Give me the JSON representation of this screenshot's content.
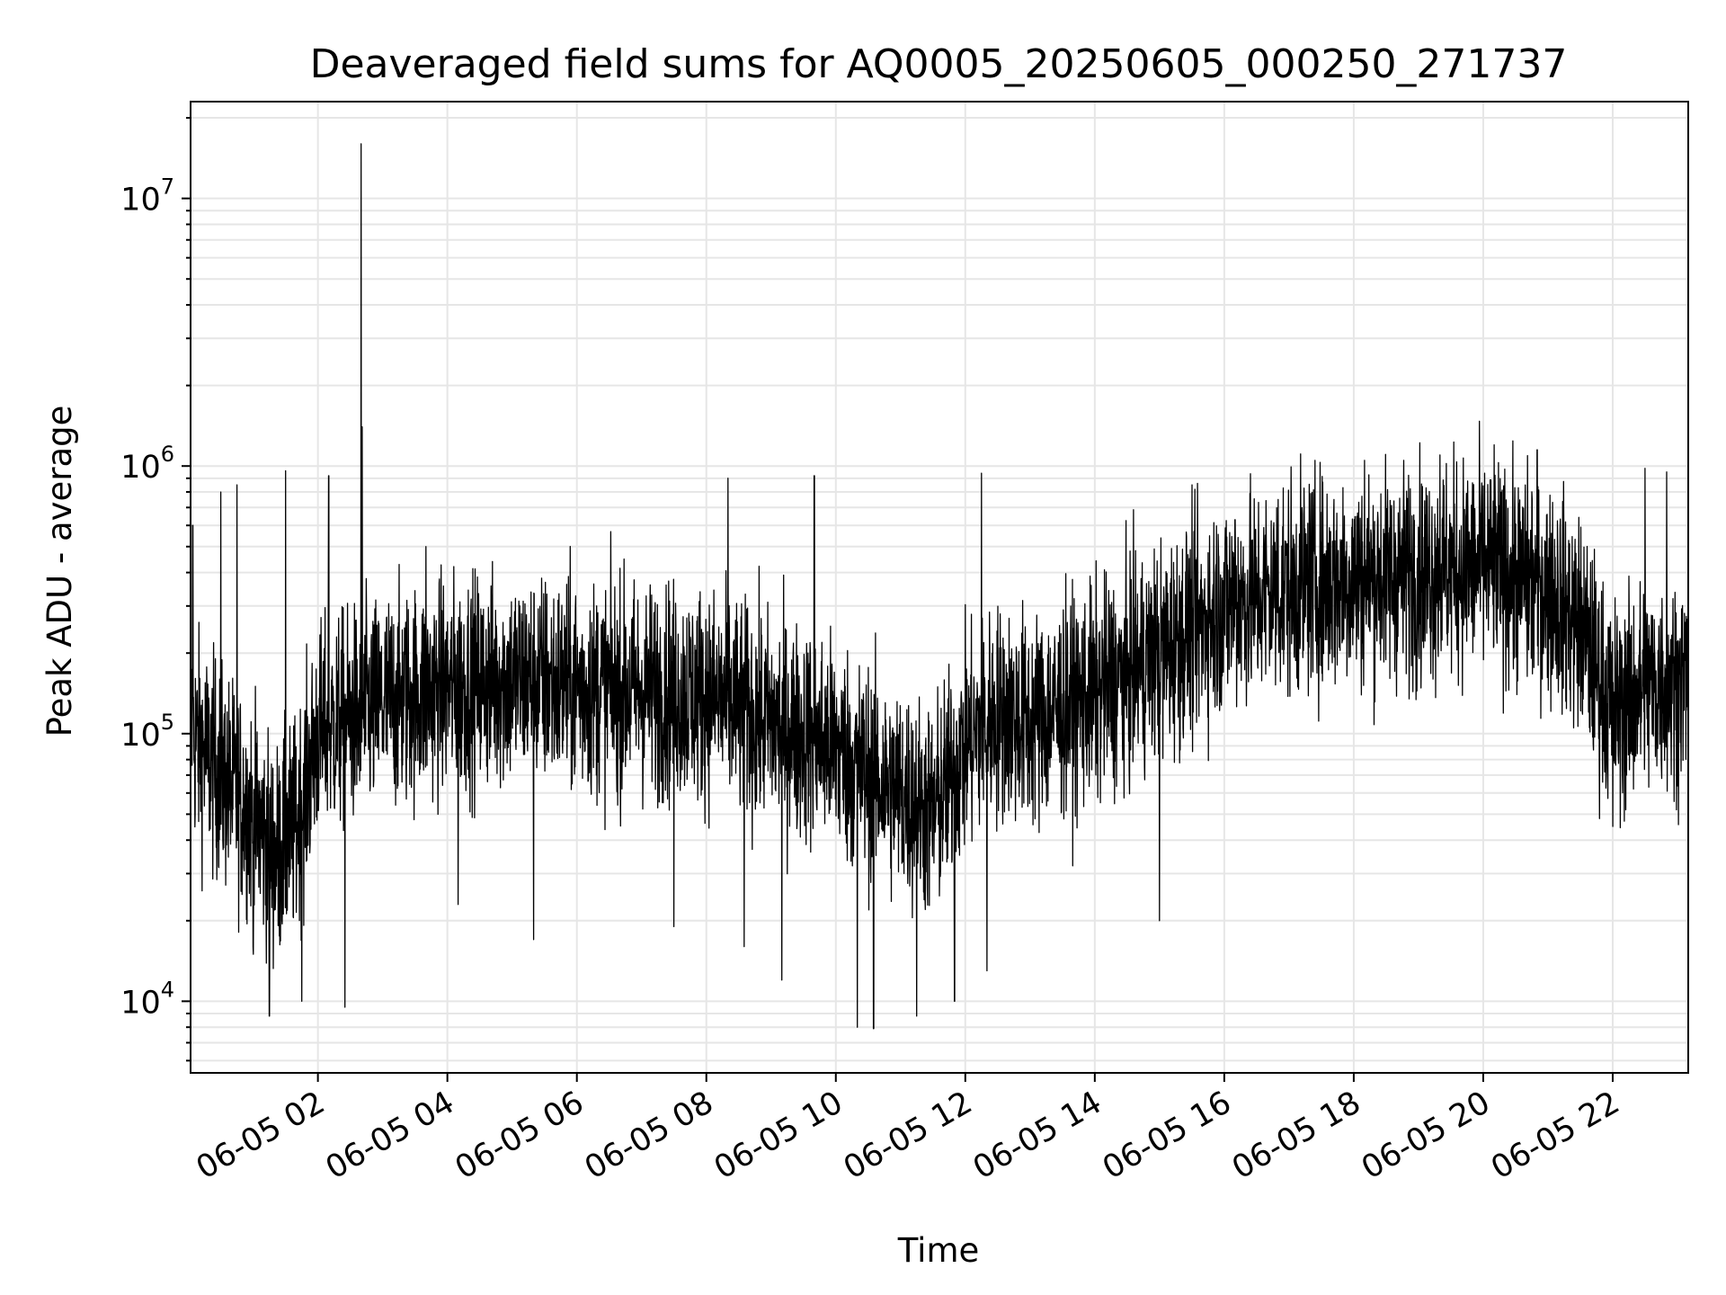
{
  "chart_data": {
    "type": "line",
    "title": "Deaveraged field sums for AQ0005_20250605_000250_271737",
    "xlabel": "Time",
    "ylabel": "Peak ADU - average",
    "y_scale": "log",
    "ylim": [
      5400,
      23000000
    ],
    "xlim": [
      "06-05 00:02",
      "06-05 23:10"
    ],
    "grid": true,
    "line_color": "#000000",
    "grid_color": "#e6e6e6",
    "x_ticks": [
      "06-05 02",
      "06-05 04",
      "06-05 06",
      "06-05 08",
      "06-05 10",
      "06-05 12",
      "06-05 14",
      "06-05 16",
      "06-05 18",
      "06-05 20",
      "06-05 22"
    ],
    "y_ticks": [
      {
        "base": "10",
        "exp": "4",
        "value": 10000
      },
      {
        "base": "10",
        "exp": "5",
        "value": 100000
      },
      {
        "base": "10",
        "exp": "6",
        "value": 1000000
      },
      {
        "base": "10",
        "exp": "7",
        "value": 10000000
      }
    ],
    "series": [
      {
        "baseline": [
          [
            "06-05 00:02",
            100000
          ],
          [
            "06-05 00:30",
            70000
          ],
          [
            "06-05 01:00",
            50000
          ],
          [
            "06-05 01:20",
            35000
          ],
          [
            "06-05 01:40",
            45000
          ],
          [
            "06-05 02:00",
            100000
          ],
          [
            "06-05 03:00",
            130000
          ],
          [
            "06-05 04:00",
            150000
          ],
          [
            "06-05 05:00",
            160000
          ],
          [
            "06-05 06:00",
            150000
          ],
          [
            "06-05 07:00",
            145000
          ],
          [
            "06-05 08:00",
            140000
          ],
          [
            "06-05 09:00",
            110000
          ],
          [
            "06-05 10:00",
            90000
          ],
          [
            "06-05 10:30",
            70000
          ],
          [
            "06-05 11:00",
            60000
          ],
          [
            "06-05 11:30",
            50000
          ],
          [
            "06-05 12:00",
            90000
          ],
          [
            "06-05 12:30",
            120000
          ],
          [
            "06-05 13:00",
            110000
          ],
          [
            "06-05 14:00",
            140000
          ],
          [
            "06-05 15:00",
            200000
          ],
          [
            "06-05 16:00",
            300000
          ],
          [
            "06-05 17:00",
            350000
          ],
          [
            "06-05 18:00",
            380000
          ],
          [
            "06-05 19:00",
            400000
          ],
          [
            "06-05 20:00",
            420000
          ],
          [
            "06-05 21:00",
            350000
          ],
          [
            "06-05 21:30",
            250000
          ],
          [
            "06-05 22:00",
            120000
          ],
          [
            "06-05 22:30",
            150000
          ],
          [
            "06-05 23:10",
            160000
          ]
        ],
        "spikes": [
          [
            "06-05 00:04",
            600000
          ],
          [
            "06-05 00:30",
            800000
          ],
          [
            "06-05 00:45",
            850000
          ],
          [
            "06-05 01:00",
            16000
          ],
          [
            "06-05 01:15",
            8800
          ],
          [
            "06-05 01:30",
            960000
          ],
          [
            "06-05 01:45",
            10000
          ],
          [
            "06-05 02:10",
            920000
          ],
          [
            "06-05 02:25",
            9500
          ],
          [
            "06-05 02:40",
            16000000
          ],
          [
            "06-05 02:41",
            1400000
          ],
          [
            "06-05 03:40",
            500000
          ],
          [
            "06-05 04:10",
            23000
          ],
          [
            "06-05 05:20",
            17000
          ],
          [
            "06-05 07:30",
            19000
          ],
          [
            "06-05 08:20",
            900000
          ],
          [
            "06-05 08:35",
            16000
          ],
          [
            "06-05 09:10",
            12000
          ],
          [
            "06-05 09:40",
            920000
          ],
          [
            "06-05 10:20",
            8000
          ],
          [
            "06-05 10:35",
            7900
          ],
          [
            "06-05 11:15",
            8800
          ],
          [
            "06-05 11:50",
            10000
          ],
          [
            "06-05 12:15",
            940000
          ],
          [
            "06-05 12:20",
            13000
          ],
          [
            "06-05 15:00",
            20000
          ],
          [
            "06-05 16:10",
            630000
          ],
          [
            "06-05 16:50",
            750000
          ],
          [
            "06-05 18:10",
            1050000
          ],
          [
            "06-05 19:20",
            1100000
          ],
          [
            "06-05 20:10",
            1200000
          ],
          [
            "06-05 20:50",
            1150000
          ],
          [
            "06-05 22:00",
            45000
          ],
          [
            "06-05 22:30",
            980000
          ],
          [
            "06-05 22:50",
            950000
          ]
        ]
      }
    ]
  }
}
